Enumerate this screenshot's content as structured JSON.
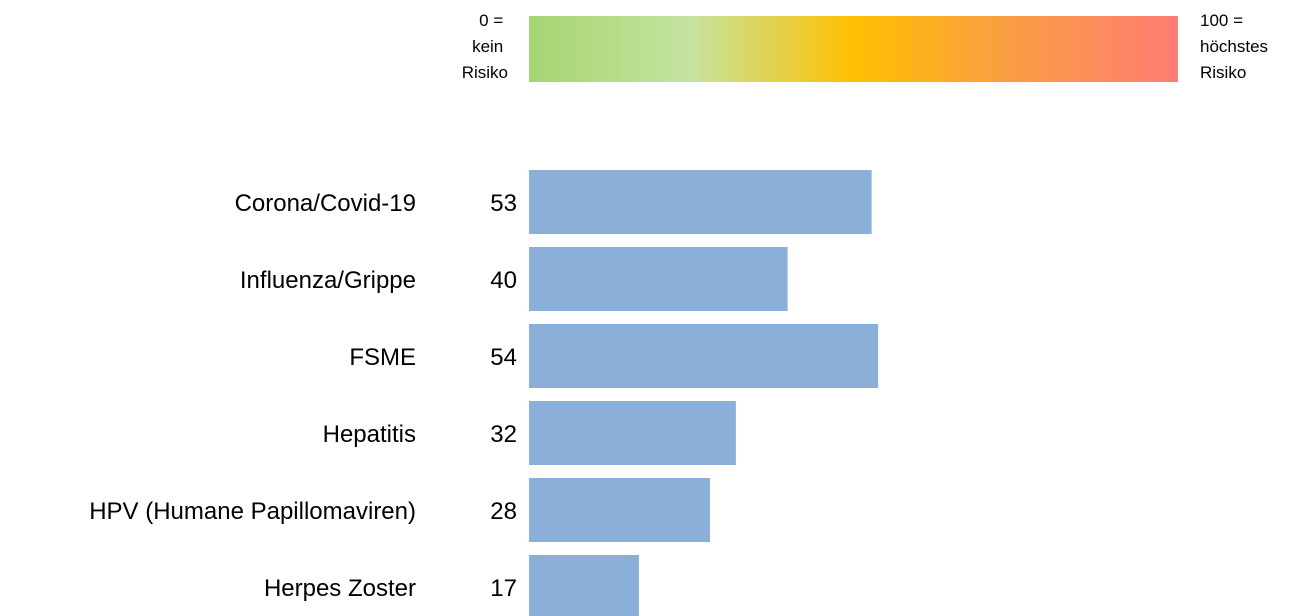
{
  "scale": {
    "min_label_lines": [
      "0 =",
      "kein",
      "Risiko"
    ],
    "max_label_lines": [
      "100 =",
      "höchstes",
      "Risiko"
    ],
    "gradient_colors": [
      "#A6D472",
      "#C4E3A0",
      "#FFC000",
      "#F9A03F",
      "#FF7C74"
    ]
  },
  "colors": {
    "bar": "#8AAFD8",
    "text": "#000000"
  },
  "chart_data": {
    "type": "bar",
    "orientation": "horizontal",
    "categories": [
      "Corona/Covid-19",
      "Influenza/Grippe",
      "FSME",
      "Hepatitis",
      "HPV (Humane Papillomaviren)",
      "Herpes Zoster"
    ],
    "values": [
      53,
      40,
      54,
      32,
      28,
      17
    ],
    "xlim": [
      0,
      100
    ],
    "grid": false,
    "data_labels": true
  }
}
